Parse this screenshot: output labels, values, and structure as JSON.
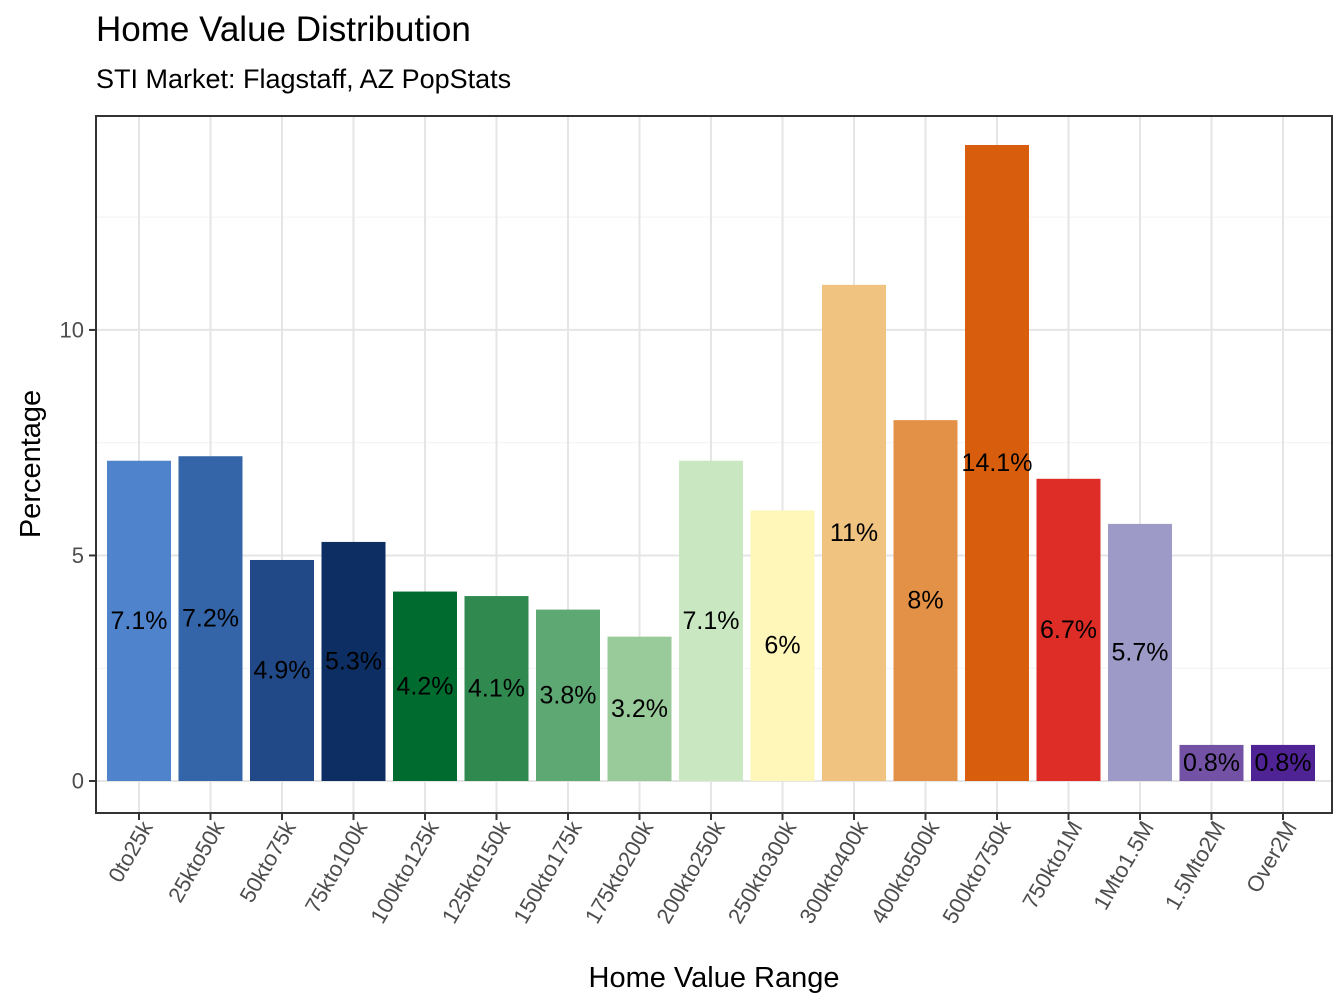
{
  "chart_data": {
    "type": "bar",
    "title": "Home Value Distribution",
    "subtitle": "STI Market: Flagstaff, AZ PopStats",
    "xlabel": "Home Value Range",
    "ylabel": "Percentage",
    "ylim": [
      0,
      14.1
    ],
    "yticks": [
      0,
      5,
      10
    ],
    "grid": true,
    "legend": "none",
    "categories": [
      "0to25k",
      "25kto50k",
      "50kto75k",
      "75kto100k",
      "100kto125k",
      "125kto150k",
      "150kto175k",
      "175kto200k",
      "200kto250k",
      "250kto300k",
      "300kto400k",
      "400kto500k",
      "500kto750k",
      "750kto1M",
      "1Mto1.5M",
      "1.5Mto2M",
      "Over2M"
    ],
    "values": [
      7.1,
      7.2,
      4.9,
      5.3,
      4.2,
      4.1,
      3.8,
      3.2,
      7.1,
      6.0,
      11.0,
      8.0,
      14.1,
      6.7,
      5.7,
      0.8,
      0.8
    ],
    "labels": [
      "7.1%",
      "7.2%",
      "4.9%",
      "5.3%",
      "4.2%",
      "4.1%",
      "3.8%",
      "3.2%",
      "7.1%",
      "6%",
      "11%",
      "8%",
      "14.1%",
      "6.7%",
      "5.7%",
      "0.8%",
      "0.8%"
    ],
    "colors": [
      "#4F83CC",
      "#3465A8",
      "#214987",
      "#0D2E62",
      "#006B2E",
      "#308A4F",
      "#5EA873",
      "#98CA9A",
      "#C9E8C1",
      "#FFF6BA",
      "#F0C380",
      "#E39146",
      "#D85E0E",
      "#DE2D26",
      "#9E9AC8",
      "#7352A6",
      "#4F2393"
    ]
  }
}
